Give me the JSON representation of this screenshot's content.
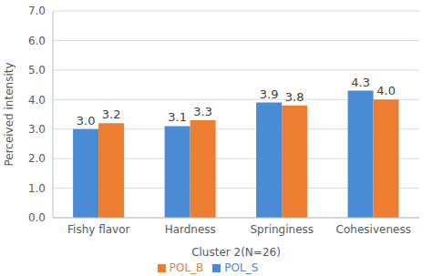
{
  "chart_data": {
    "type": "bar",
    "x_label": "Cluster 2(N=26)",
    "y_label": "Perceived intensity",
    "categories": [
      "Fishy flavor",
      "Hardness",
      "Springiness",
      "Cohesiveness"
    ],
    "series": [
      {
        "name": "POL_S",
        "color": "#4a8bd6",
        "values": [
          3.0,
          3.1,
          3.9,
          4.3
        ],
        "value_labels": [
          "3.0",
          "3.1",
          "3.9",
          "4.3"
        ]
      },
      {
        "name": "POL_B",
        "color": "#ed7d31",
        "values": [
          3.2,
          3.3,
          3.8,
          4.0
        ],
        "value_labels": [
          "3.2",
          "3.3",
          "3.8",
          "4.0"
        ]
      }
    ],
    "ylim": [
      0,
      7
    ],
    "yticks": [
      {
        "value": 0,
        "label": "0.0"
      },
      {
        "value": 1,
        "label": "1.0"
      },
      {
        "value": 2,
        "label": "2.0"
      },
      {
        "value": 3,
        "label": "3.0"
      },
      {
        "value": 4,
        "label": "4.0"
      },
      {
        "value": 5,
        "label": "5.0"
      },
      {
        "value": 6,
        "label": "6.0"
      },
      {
        "value": 7,
        "label": "7.0"
      }
    ],
    "grid": true,
    "legend": "bottom",
    "data_labels": true
  }
}
